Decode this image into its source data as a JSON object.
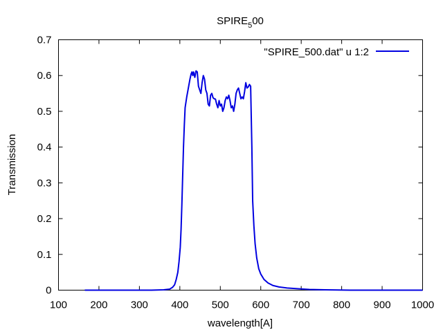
{
  "chart_data": {
    "type": "line",
    "title": "SPIRE",
    "title_subscript": "5",
    "title_suffix": "00",
    "xlabel": "wavelength[A]",
    "ylabel": "Transmission",
    "xlim": [
      100,
      1000
    ],
    "ylim": [
      0,
      0.7
    ],
    "xticks": [
      100,
      200,
      300,
      400,
      500,
      600,
      700,
      800,
      900,
      1000
    ],
    "yticks": [
      0,
      0.1,
      0.2,
      0.3,
      0.4,
      0.5,
      0.6,
      0.7
    ],
    "grid": false,
    "legend_position": "top-right",
    "series": [
      {
        "name": "\"SPIRE_500.dat\" u 1:2",
        "color": "#0000e0",
        "points": [
          [
            165,
            0.0
          ],
          [
            250,
            0.0
          ],
          [
            330,
            0.0
          ],
          [
            360,
            0.001
          ],
          [
            375,
            0.003
          ],
          [
            382,
            0.008
          ],
          [
            387,
            0.015
          ],
          [
            391,
            0.03
          ],
          [
            395,
            0.05
          ],
          [
            398,
            0.08
          ],
          [
            401,
            0.12
          ],
          [
            403,
            0.17
          ],
          [
            405,
            0.24
          ],
          [
            407,
            0.32
          ],
          [
            409,
            0.4
          ],
          [
            411,
            0.46
          ],
          [
            413,
            0.51
          ],
          [
            417,
            0.54
          ],
          [
            421,
            0.565
          ],
          [
            425,
            0.59
          ],
          [
            428,
            0.605
          ],
          [
            430,
            0.61
          ],
          [
            432,
            0.6
          ],
          [
            434,
            0.61
          ],
          [
            437,
            0.595
          ],
          [
            440,
            0.613
          ],
          [
            443,
            0.61
          ],
          [
            446,
            0.57
          ],
          [
            449,
            0.56
          ],
          [
            452,
            0.55
          ],
          [
            455,
            0.58
          ],
          [
            458,
            0.6
          ],
          [
            461,
            0.59
          ],
          [
            464,
            0.56
          ],
          [
            467,
            0.55
          ],
          [
            470,
            0.52
          ],
          [
            473,
            0.515
          ],
          [
            476,
            0.545
          ],
          [
            479,
            0.55
          ],
          [
            482,
            0.538
          ],
          [
            485,
            0.535
          ],
          [
            488,
            0.534
          ],
          [
            491,
            0.52
          ],
          [
            494,
            0.51
          ],
          [
            497,
            0.53
          ],
          [
            500,
            0.515
          ],
          [
            503,
            0.52
          ],
          [
            506,
            0.5
          ],
          [
            509,
            0.51
          ],
          [
            512,
            0.53
          ],
          [
            515,
            0.54
          ],
          [
            518,
            0.535
          ],
          [
            521,
            0.545
          ],
          [
            524,
            0.53
          ],
          [
            527,
            0.51
          ],
          [
            530,
            0.515
          ],
          [
            533,
            0.5
          ],
          [
            536,
            0.52
          ],
          [
            539,
            0.55
          ],
          [
            542,
            0.56
          ],
          [
            545,
            0.565
          ],
          [
            548,
            0.55
          ],
          [
            551,
            0.535
          ],
          [
            554,
            0.54
          ],
          [
            557,
            0.535
          ],
          [
            560,
            0.555
          ],
          [
            563,
            0.58
          ],
          [
            566,
            0.565
          ],
          [
            569,
            0.568
          ],
          [
            572,
            0.575
          ],
          [
            575,
            0.57
          ],
          [
            578,
            0.4
          ],
          [
            580,
            0.25
          ],
          [
            583,
            0.18
          ],
          [
            586,
            0.13
          ],
          [
            590,
            0.09
          ],
          [
            595,
            0.06
          ],
          [
            600,
            0.045
          ],
          [
            608,
            0.03
          ],
          [
            618,
            0.02
          ],
          [
            630,
            0.013
          ],
          [
            645,
            0.009
          ],
          [
            665,
            0.006
          ],
          [
            690,
            0.004
          ],
          [
            720,
            0.002
          ],
          [
            760,
            0.001
          ],
          [
            820,
            0.0
          ],
          [
            900,
            0.0
          ],
          [
            1000,
            0.0
          ]
        ]
      }
    ]
  }
}
